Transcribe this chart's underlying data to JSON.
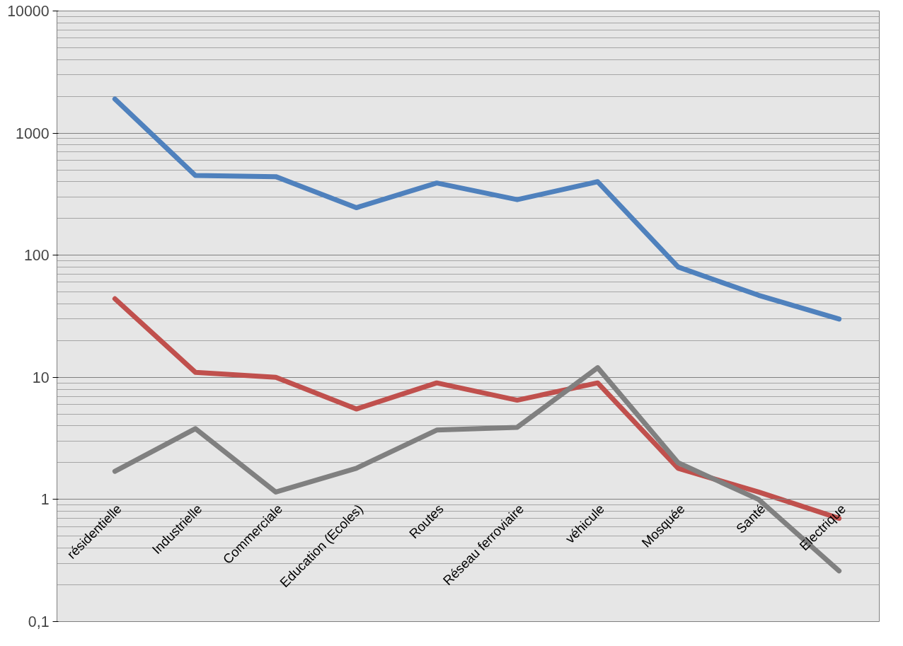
{
  "chart_data": {
    "type": "line",
    "log": "y",
    "grid": "y",
    "line_style": "solid",
    "marker": "none",
    "categories": [
      "résidentielle",
      "Industrielle",
      "Commerciale",
      "Education (Ecoles)",
      "Routes",
      "Réseau ferroviaire",
      "véhicule",
      "Mosquée",
      "Santé",
      "Electrique"
    ],
    "ylim": [
      0.1,
      10000
    ],
    "yticks": [
      {
        "value": 0.1,
        "label": "0,1"
      },
      1,
      10,
      100,
      1000,
      10000
    ],
    "series": [
      {
        "color": "#4f81bd",
        "values": [
          1900,
          450,
          440,
          245,
          390,
          285,
          400,
          80,
          47,
          30
        ]
      },
      {
        "color": "#c0504d",
        "values": [
          44,
          11,
          10,
          5.5,
          9,
          6.5,
          9,
          1.8,
          1.15,
          0.7
        ]
      },
      {
        "color": "#808080",
        "values": [
          1.7,
          3.8,
          1.15,
          1.8,
          3.7,
          3.9,
          12,
          2.0,
          1.0,
          0.26
        ]
      }
    ]
  }
}
